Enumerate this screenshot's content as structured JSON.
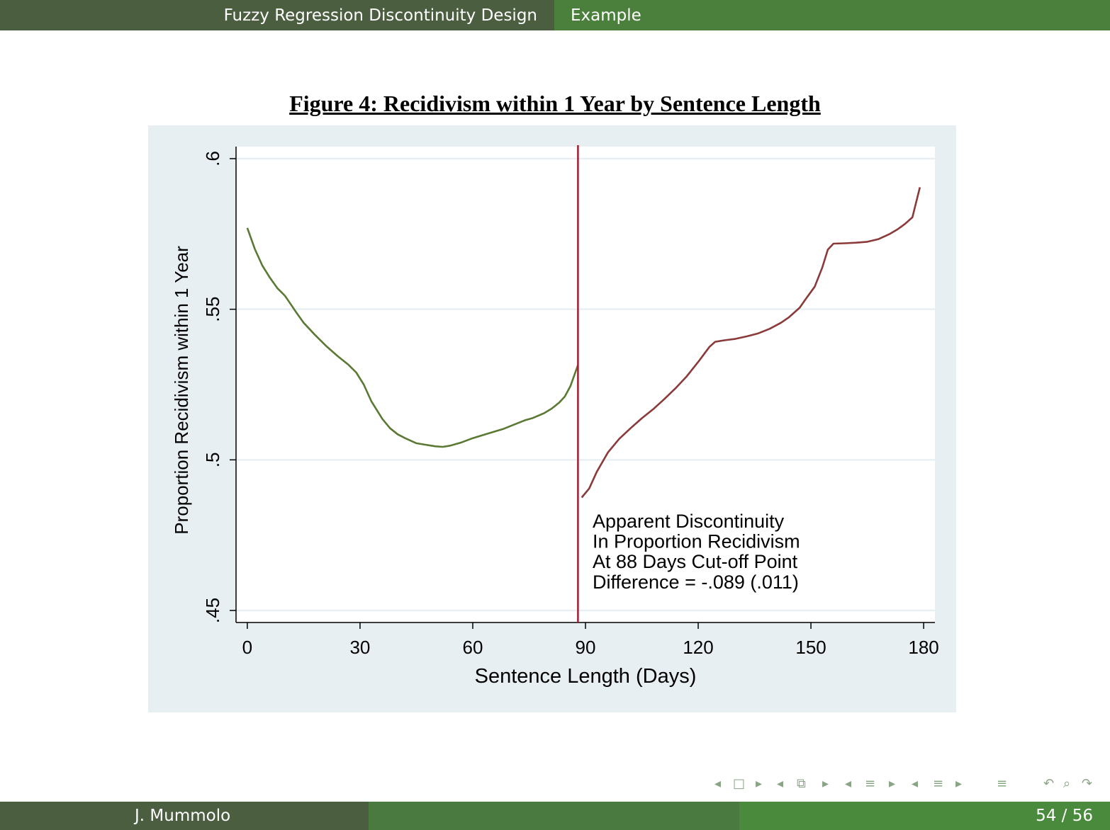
{
  "header": {
    "section": "Fuzzy Regression Discontinuity Design",
    "subsection": "Example"
  },
  "footer": {
    "author": "J. Mummolo",
    "page": "54 / 56"
  },
  "nav_icons": [
    "◂",
    "□",
    "▸",
    "◂",
    "⧉",
    "▸",
    "◂",
    "≡",
    "▸",
    "◂",
    "≡",
    "▸",
    "≡",
    "↶",
    "⌕",
    "↷"
  ],
  "colors": {
    "left_series": "#5a7a34",
    "right_series": "#8b3a3a",
    "cutoff": "#a51c30",
    "plot_region": "#e8eff3"
  },
  "chart_data": {
    "type": "line",
    "title": "Figure 4: Recidivism within 1 Year by Sentence Length",
    "xlabel": "Sentence Length (Days)",
    "ylabel": "Proportion Recidivism within 1 Year",
    "xlim": [
      -3,
      183
    ],
    "ylim": [
      0.446,
      0.604
    ],
    "x_ticks": [
      0,
      30,
      60,
      90,
      120,
      150,
      180
    ],
    "x_tick_labels": [
      "0",
      "30",
      "60",
      "90",
      "120",
      "150",
      "180"
    ],
    "y_ticks": [
      0.45,
      0.5,
      0.55,
      0.6
    ],
    "y_tick_labels": [
      ".45",
      ".5",
      ".55",
      ".6"
    ],
    "grid": true,
    "cutoff_x": 88,
    "annotation": [
      "Apparent Discontinuity",
      "In Proportion Recidivism",
      "At 88 Days Cut-off Point",
      "Difference = -.089 (.011)"
    ],
    "series": [
      {
        "x": [
          0,
          2,
          4,
          6,
          8,
          10,
          11,
          13,
          15,
          18,
          21,
          24,
          27,
          29,
          31,
          33,
          36,
          38,
          40,
          42,
          45,
          47,
          50,
          52,
          54,
          57,
          60,
          64,
          68,
          71,
          74,
          76,
          79,
          81,
          83,
          84.5,
          86,
          88
        ],
        "y": [
          0.577,
          0.57,
          0.5645,
          0.5605,
          0.557,
          0.5545,
          0.5527,
          0.549,
          0.5455,
          0.5415,
          0.5378,
          0.5345,
          0.5315,
          0.529,
          0.525,
          0.5195,
          0.5135,
          0.5105,
          0.5085,
          0.5072,
          0.5055,
          0.5051,
          0.5045,
          0.5043,
          0.5047,
          0.5058,
          0.5072,
          0.5087,
          0.5102,
          0.5117,
          0.5132,
          0.5139,
          0.5155,
          0.517,
          0.519,
          0.521,
          0.5245,
          0.5315
        ]
      },
      {
        "x": [
          89,
          91,
          93,
          96,
          99,
          102,
          105,
          108,
          111,
          114,
          117,
          120,
          123,
          124.5,
          127,
          130,
          133,
          136,
          139,
          142,
          144,
          147,
          148.5,
          151,
          153,
          154.5,
          156,
          159,
          162,
          165,
          168,
          171,
          173,
          175,
          177,
          179
        ],
        "y": [
          0.4875,
          0.4905,
          0.496,
          0.5025,
          0.507,
          0.5105,
          0.5138,
          0.5168,
          0.5202,
          0.5238,
          0.5278,
          0.5325,
          0.5375,
          0.5392,
          0.5397,
          0.5402,
          0.541,
          0.542,
          0.5435,
          0.5455,
          0.5472,
          0.5505,
          0.5532,
          0.5575,
          0.5638,
          0.5698,
          0.5718,
          0.5719,
          0.5721,
          0.5724,
          0.5733,
          0.575,
          0.5765,
          0.5783,
          0.5805,
          0.5905
        ]
      }
    ]
  }
}
